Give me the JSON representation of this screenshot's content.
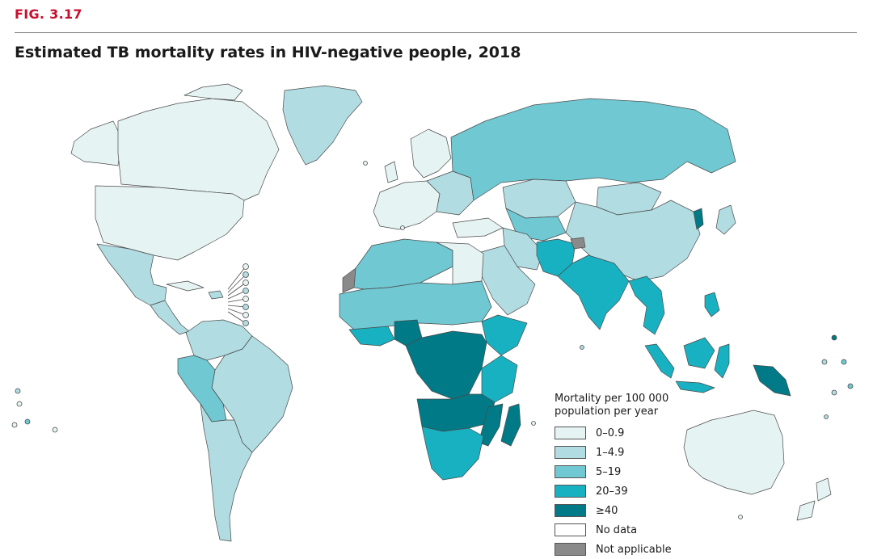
{
  "figure": {
    "label": "FIG. 3.17",
    "title": "Estimated TB mortality rates in HIV-negative people, 2018"
  },
  "legend": {
    "title_line1": "Mortality per 100 000",
    "title_line2": "population per year",
    "categories": [
      {
        "label": "0–0.9",
        "color": "#e6f3f3"
      },
      {
        "label": "1–4.9",
        "color": "#b1dce2"
      },
      {
        "label": "5–19",
        "color": "#6fc8d2"
      },
      {
        "label": "20–39",
        "color": "#18b1c1"
      },
      {
        "label": "≥40",
        "color": "#007a86"
      },
      {
        "label": "No data",
        "color": "#ffffff"
      },
      {
        "label": "Not applicable",
        "color": "#8a8a8a"
      }
    ]
  },
  "colors": {
    "accent": "#c8102e",
    "border": "#4a4a4a"
  }
}
